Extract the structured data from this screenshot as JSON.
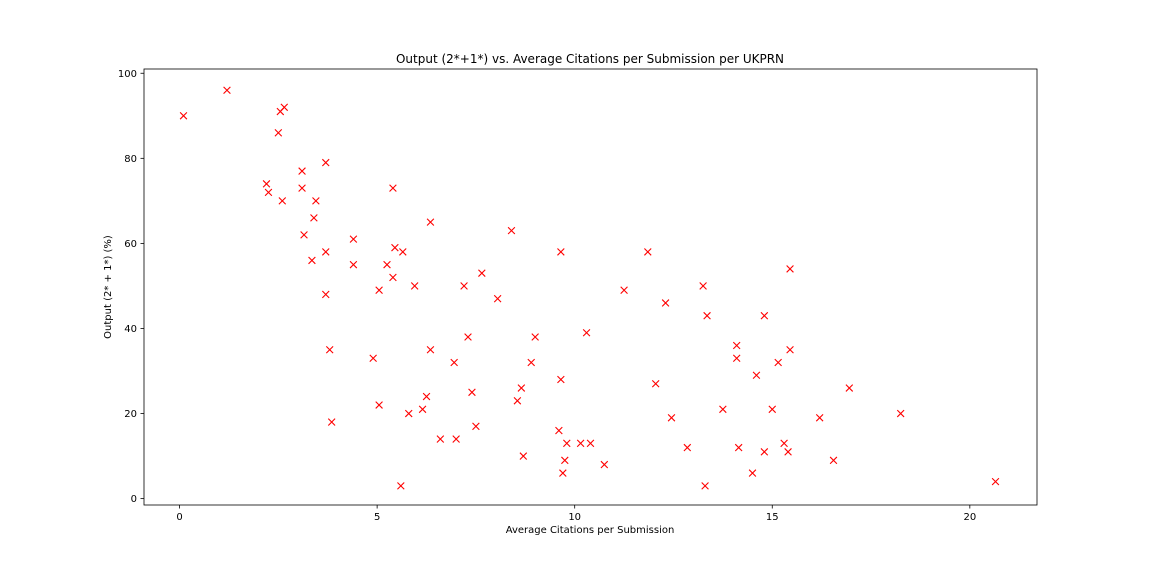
{
  "chart_data": {
    "type": "scatter",
    "title": "Output (2*+1*) vs. Average Citations per Submission per UKPRN",
    "xlabel": "Average Citations per Submission",
    "ylabel": "Output (2* + 1*) (%)",
    "xlim": [
      -0.9,
      21.7
    ],
    "ylim": [
      -1.5,
      101
    ],
    "xticks": [
      0,
      5,
      10,
      15,
      20
    ],
    "yticks": [
      0,
      20,
      40,
      60,
      80,
      100
    ],
    "grid": false,
    "marker": "x",
    "marker_color": "#ff0000",
    "points": [
      [
        0.1,
        90
      ],
      [
        1.2,
        96
      ],
      [
        2.2,
        74
      ],
      [
        2.25,
        72
      ],
      [
        2.5,
        86
      ],
      [
        2.55,
        91
      ],
      [
        2.65,
        92
      ],
      [
        2.6,
        70
      ],
      [
        3.1,
        77
      ],
      [
        3.1,
        73
      ],
      [
        3.15,
        62
      ],
      [
        3.35,
        56
      ],
      [
        3.4,
        66
      ],
      [
        3.45,
        70
      ],
      [
        3.7,
        79
      ],
      [
        3.7,
        58
      ],
      [
        3.7,
        48
      ],
      [
        3.8,
        35
      ],
      [
        3.85,
        18
      ],
      [
        4.4,
        61
      ],
      [
        4.4,
        55
      ],
      [
        4.9,
        33
      ],
      [
        5.05,
        22
      ],
      [
        5.05,
        49
      ],
      [
        5.25,
        55
      ],
      [
        5.4,
        73
      ],
      [
        5.4,
        52
      ],
      [
        5.45,
        59
      ],
      [
        5.6,
        3
      ],
      [
        5.65,
        58
      ],
      [
        5.8,
        20
      ],
      [
        5.95,
        50
      ],
      [
        6.15,
        21
      ],
      [
        6.25,
        24
      ],
      [
        6.35,
        35
      ],
      [
        6.35,
        65
      ],
      [
        6.6,
        14
      ],
      [
        6.95,
        32
      ],
      [
        7.0,
        14
      ],
      [
        7.2,
        50
      ],
      [
        7.3,
        38
      ],
      [
        7.4,
        25
      ],
      [
        7.5,
        17
      ],
      [
        7.65,
        53
      ],
      [
        8.05,
        47
      ],
      [
        8.4,
        63
      ],
      [
        8.55,
        23
      ],
      [
        8.65,
        26
      ],
      [
        8.7,
        10
      ],
      [
        8.9,
        32
      ],
      [
        9.0,
        38
      ],
      [
        9.6,
        16
      ],
      [
        9.65,
        28
      ],
      [
        9.65,
        58
      ],
      [
        9.7,
        6
      ],
      [
        9.75,
        9
      ],
      [
        9.8,
        13
      ],
      [
        10.15,
        13
      ],
      [
        10.3,
        39
      ],
      [
        10.4,
        13
      ],
      [
        10.75,
        8
      ],
      [
        11.25,
        49
      ],
      [
        11.85,
        58
      ],
      [
        12.05,
        27
      ],
      [
        12.3,
        46
      ],
      [
        12.45,
        19
      ],
      [
        12.85,
        12
      ],
      [
        13.25,
        50
      ],
      [
        13.3,
        3
      ],
      [
        13.35,
        43
      ],
      [
        13.75,
        21
      ],
      [
        14.1,
        36
      ],
      [
        14.1,
        33
      ],
      [
        14.15,
        12
      ],
      [
        14.5,
        6
      ],
      [
        14.6,
        29
      ],
      [
        14.8,
        43
      ],
      [
        14.8,
        11
      ],
      [
        15.0,
        21
      ],
      [
        15.15,
        32
      ],
      [
        15.3,
        13
      ],
      [
        15.45,
        54
      ],
      [
        15.45,
        35
      ],
      [
        15.4,
        11
      ],
      [
        16.2,
        19
      ],
      [
        16.55,
        9
      ],
      [
        16.95,
        26
      ],
      [
        18.25,
        20
      ],
      [
        20.65,
        4
      ]
    ]
  }
}
